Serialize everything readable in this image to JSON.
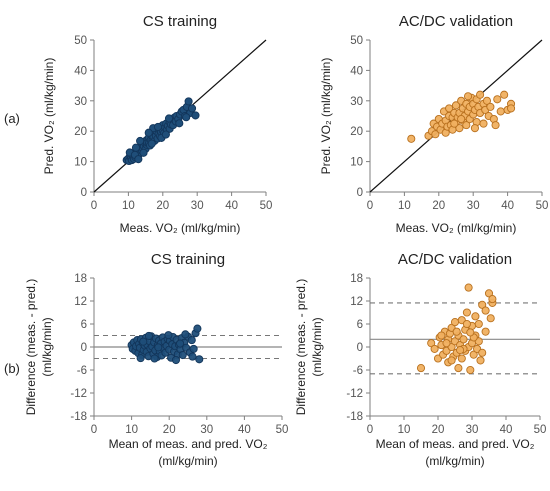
{
  "figure": {
    "row_labels": [
      "(a)",
      "(b)"
    ]
  },
  "chart_data": [
    {
      "id": "a-cs",
      "type": "scatter",
      "title": "CS training",
      "xlabel": "Meas. VO₂ (ml/kg/min)",
      "ylabel": "Pred. VO₂ (ml/kg/min)",
      "xlim": [
        0,
        50
      ],
      "ylim": [
        0,
        50
      ],
      "xticks": [
        0,
        10,
        20,
        30,
        40,
        50
      ],
      "yticks": [
        0,
        10,
        20,
        30,
        40,
        50
      ],
      "identity_line": true,
      "marker_color": "#1f4e79",
      "marker_edge": "#12355a",
      "points": [
        [
          9.5,
          10.5
        ],
        [
          10,
          11
        ],
        [
          10.2,
          10.2
        ],
        [
          10.5,
          12
        ],
        [
          10.8,
          11.2
        ],
        [
          11,
          10.5
        ],
        [
          11,
          12.5
        ],
        [
          11.3,
          11.7
        ],
        [
          11.6,
          10.9
        ],
        [
          11.8,
          13
        ],
        [
          12,
          11.5
        ],
        [
          12,
          12.8
        ],
        [
          12.3,
          12.1
        ],
        [
          12.5,
          13.5
        ],
        [
          12.7,
          11.8
        ],
        [
          13,
          12.4
        ],
        [
          13,
          14
        ],
        [
          13.2,
          13.2
        ],
        [
          13.5,
          12.8
        ],
        [
          13.6,
          14.6
        ],
        [
          13.8,
          15.2
        ],
        [
          14,
          13.5
        ],
        [
          14,
          16
        ],
        [
          14.2,
          14.3
        ],
        [
          14.5,
          15
        ],
        [
          14.7,
          16.5
        ],
        [
          15,
          14.2
        ],
        [
          15,
          15.8
        ],
        [
          15.2,
          17
        ],
        [
          15.4,
          15.5
        ],
        [
          15.5,
          16.2
        ],
        [
          15.8,
          17.6
        ],
        [
          16,
          16
        ],
        [
          16,
          18
        ],
        [
          16.3,
          15.3
        ],
        [
          16.5,
          17.2
        ],
        [
          16.7,
          18.6
        ],
        [
          17,
          17
        ],
        [
          17,
          19
        ],
        [
          17.3,
          18.1
        ],
        [
          17.6,
          16.8
        ],
        [
          17.8,
          19.5
        ],
        [
          18,
          18.5
        ],
        [
          18.2,
          20
        ],
        [
          18.5,
          17.6
        ],
        [
          18.8,
          19.2
        ],
        [
          19,
          20.5
        ],
        [
          19.2,
          18.4
        ],
        [
          19.5,
          19.8
        ],
        [
          19.8,
          21
        ],
        [
          20,
          20.2
        ],
        [
          20,
          22
        ],
        [
          20.4,
          19.4
        ],
        [
          20.7,
          21.2
        ],
        [
          21,
          22.5
        ],
        [
          21.2,
          20.5
        ],
        [
          21.5,
          21.8
        ],
        [
          22,
          23
        ],
        [
          22,
          20.8
        ],
        [
          22.4,
          22.2
        ],
        [
          22.8,
          23.8
        ],
        [
          23,
          22
        ],
        [
          23.4,
          24.5
        ],
        [
          23.8,
          23.2
        ],
        [
          24,
          25
        ],
        [
          24.5,
          24
        ],
        [
          25,
          25.5
        ],
        [
          25.5,
          26.5
        ],
        [
          26,
          27
        ],
        [
          26.5,
          25
        ],
        [
          27,
          28
        ],
        [
          27.5,
          29.8
        ],
        [
          28,
          26
        ],
        [
          28.5,
          27.5
        ],
        [
          10.4,
          13
        ],
        [
          11.9,
          12.2
        ],
        [
          12.9,
          10.8
        ],
        [
          14.4,
          12.9
        ],
        [
          16.8,
          15.9
        ],
        [
          19.6,
          17.8
        ],
        [
          21.8,
          24.2
        ],
        [
          17.2,
          21
        ],
        [
          15.9,
          19.5
        ],
        [
          13.4,
          16.8
        ],
        [
          24.8,
          22.6
        ],
        [
          26.8,
          24.6
        ],
        [
          12.2,
          14.6
        ],
        [
          18.6,
          21.4
        ],
        [
          20.9,
          18.9
        ],
        [
          29.5,
          25.2
        ]
      ]
    },
    {
      "id": "a-acdc",
      "type": "scatter",
      "title": "AC/DC validation",
      "xlabel": "Meas. VO₂ (ml/kg/min)",
      "ylabel": "Pred. VO₂ (ml/kg/min)",
      "xlim": [
        0,
        50
      ],
      "ylim": [
        0,
        50
      ],
      "xticks": [
        0,
        10,
        20,
        30,
        40,
        50
      ],
      "yticks": [
        0,
        10,
        20,
        30,
        40,
        50
      ],
      "identity_line": true,
      "marker_color": "#f0b060",
      "marker_edge": "#b8701e",
      "points": [
        [
          12,
          17.5
        ],
        [
          17,
          18.5
        ],
        [
          18,
          20
        ],
        [
          18.5,
          22.5
        ],
        [
          19,
          19
        ],
        [
          19.5,
          21.5
        ],
        [
          20,
          24
        ],
        [
          20.5,
          20.5
        ],
        [
          21,
          22.5
        ],
        [
          21.5,
          26.5
        ],
        [
          22,
          19.5
        ],
        [
          22,
          23.5
        ],
        [
          22.5,
          21.5
        ],
        [
          23,
          25
        ],
        [
          23,
          27.5
        ],
        [
          23.5,
          22
        ],
        [
          24,
          24.5
        ],
        [
          24,
          20.5
        ],
        [
          24.5,
          26
        ],
        [
          25,
          23
        ],
        [
          25,
          28.5
        ],
        [
          25.5,
          24.5
        ],
        [
          26,
          21
        ],
        [
          26,
          26
        ],
        [
          26.5,
          30
        ],
        [
          27,
          23.5
        ],
        [
          27,
          27.5
        ],
        [
          27.5,
          25
        ],
        [
          28,
          22
        ],
        [
          28,
          29
        ],
        [
          28.5,
          26.5
        ],
        [
          29,
          24
        ],
        [
          29,
          28
        ],
        [
          29.5,
          31
        ],
        [
          30,
          25.5
        ],
        [
          30,
          29
        ],
        [
          30.5,
          27
        ],
        [
          31,
          30.5
        ],
        [
          31,
          23
        ],
        [
          31.5,
          28
        ],
        [
          32,
          26
        ],
        [
          32,
          32
        ],
        [
          33,
          29
        ],
        [
          33.5,
          27
        ],
        [
          34,
          30
        ],
        [
          34.5,
          25
        ],
        [
          35,
          28
        ],
        [
          36,
          24
        ],
        [
          36.5,
          22
        ],
        [
          37,
          30.5
        ],
        [
          38,
          26.5
        ],
        [
          39,
          32
        ],
        [
          40,
          27
        ],
        [
          41,
          29
        ],
        [
          41,
          27.5
        ],
        [
          26.5,
          24
        ],
        [
          24.5,
          22.5
        ],
        [
          28.5,
          31.5
        ],
        [
          30.5,
          21
        ],
        [
          33,
          22.5
        ]
      ]
    },
    {
      "id": "b-cs",
      "type": "scatter",
      "title": "CS training",
      "xlabel": "Mean of meas. and pred. VO₂ (ml/kg/min)",
      "xlabel_lines": [
        "Mean of meas. and pred. VO₂",
        "(ml/kg/min)"
      ],
      "ylabel": "Difference (meas. - pred.) (ml/kg/min)",
      "ylabel_lines": [
        "Difference (meas. - pred.)",
        "(ml/kg/min)"
      ],
      "xlim": [
        0,
        50
      ],
      "ylim": [
        -18,
        18
      ],
      "xticks": [
        0,
        10,
        20,
        30,
        40,
        50
      ],
      "yticks": [
        -18,
        -12,
        -6,
        0,
        6,
        12,
        18
      ],
      "mean_line": 0,
      "loa": [
        3,
        -3
      ],
      "marker_color": "#1f4e79",
      "marker_edge": "#12355a",
      "points": [
        [
          10,
          0.5
        ],
        [
          10.3,
          -0.5
        ],
        [
          10.6,
          1.2
        ],
        [
          11,
          -1
        ],
        [
          11.2,
          0.2
        ],
        [
          11.5,
          1.8
        ],
        [
          11.8,
          -1.6
        ],
        [
          12,
          0.8
        ],
        [
          12.2,
          -0.2
        ],
        [
          12.5,
          2
        ],
        [
          12.8,
          -2
        ],
        [
          13,
          1
        ],
        [
          13.2,
          -0.8
        ],
        [
          13.5,
          0.4
        ],
        [
          13.8,
          2.4
        ],
        [
          14,
          -1.3
        ],
        [
          14.2,
          0.6
        ],
        [
          14.5,
          -2.4
        ],
        [
          14.8,
          1.5
        ],
        [
          15,
          -0.4
        ],
        [
          15.2,
          2.8
        ],
        [
          15.5,
          0.1
        ],
        [
          15.8,
          -1.8
        ],
        [
          16,
          1.2
        ],
        [
          16.3,
          -0.9
        ],
        [
          16.5,
          2.2
        ],
        [
          16.8,
          -2.6
        ],
        [
          17,
          0.5
        ],
        [
          17.3,
          1.7
        ],
        [
          17.5,
          -1.1
        ],
        [
          17.8,
          0.9
        ],
        [
          18,
          -2.2
        ],
        [
          18.3,
          2.5
        ],
        [
          18.5,
          -0.3
        ],
        [
          18.8,
          1.4
        ],
        [
          19,
          -1.5
        ],
        [
          19.3,
          0.3
        ],
        [
          19.6,
          2.1
        ],
        [
          20,
          -0.7
        ],
        [
          20.2,
          1.6
        ],
        [
          20.5,
          -2.8
        ],
        [
          20.8,
          0.7
        ],
        [
          21,
          2.6
        ],
        [
          21.3,
          -1.2
        ],
        [
          21.6,
          0.2
        ],
        [
          22,
          1.9
        ],
        [
          22.3,
          -1.9
        ],
        [
          22.6,
          0.6
        ],
        [
          23,
          -0.6
        ],
        [
          23.3,
          2.3
        ],
        [
          23.6,
          -2.1
        ],
        [
          24,
          1.1
        ],
        [
          24.5,
          -0.2
        ],
        [
          25,
          2.7
        ],
        [
          25.5,
          -1.4
        ],
        [
          26,
          1.8
        ],
        [
          26.5,
          -0.5
        ],
        [
          27,
          3.6
        ],
        [
          27.5,
          4.8
        ],
        [
          28,
          -3.2
        ],
        [
          12.4,
          -2.9
        ],
        [
          14.6,
          2.9
        ],
        [
          16.1,
          -3
        ],
        [
          19.8,
          3.1
        ],
        [
          21.8,
          -3.4
        ],
        [
          24.3,
          3.3
        ],
        [
          13.1,
          1.4
        ],
        [
          17.1,
          -0.1
        ],
        [
          22.9,
          0.9
        ],
        [
          26.2,
          -2.5
        ]
      ]
    },
    {
      "id": "b-acdc",
      "type": "scatter",
      "title": "AC/DC validation",
      "xlabel": "Mean of meas. and pred. VO₂ (ml/kg/min)",
      "xlabel_lines": [
        "Mean of meas. and pred. VO₂",
        "(ml/kg/min)"
      ],
      "ylabel": "Difference (meas. - pred.) (ml/kg/min)",
      "ylabel_lines": [
        "Difference (meas. - pred.)",
        "(ml/kg/min)"
      ],
      "xlim": [
        0,
        50
      ],
      "ylim": [
        -18,
        18
      ],
      "xticks": [
        0,
        10,
        20,
        30,
        40,
        50
      ],
      "yticks": [
        -18,
        -12,
        -6,
        0,
        6,
        12,
        18
      ],
      "mean_line": 2,
      "loa": [
        11.5,
        -7
      ],
      "marker_color": "#f0b060",
      "marker_edge": "#b8701e",
      "points": [
        [
          15,
          -5.5
        ],
        [
          18,
          1
        ],
        [
          19,
          -0.5
        ],
        [
          20,
          -3
        ],
        [
          20.5,
          2.5
        ],
        [
          21,
          0.5
        ],
        [
          21.5,
          -2
        ],
        [
          22,
          4
        ],
        [
          22.5,
          -1
        ],
        [
          23,
          2
        ],
        [
          23,
          -4
        ],
        [
          23.5,
          3.5
        ],
        [
          24,
          0
        ],
        [
          24,
          5
        ],
        [
          24.5,
          -2.5
        ],
        [
          25,
          1.5
        ],
        [
          25,
          6.5
        ],
        [
          25.5,
          -1.5
        ],
        [
          26,
          3
        ],
        [
          26,
          -5.5
        ],
        [
          26.5,
          0.5
        ],
        [
          27,
          7
        ],
        [
          27,
          -3
        ],
        [
          27.5,
          2
        ],
        [
          28,
          4.5
        ],
        [
          28,
          -1
        ],
        [
          28.5,
          9
        ],
        [
          29,
          15.5
        ],
        [
          29,
          0
        ],
        [
          29.5,
          -6
        ],
        [
          30,
          5.5
        ],
        [
          30,
          1
        ],
        [
          30.5,
          -2
        ],
        [
          31,
          8
        ],
        [
          31,
          3
        ],
        [
          31.5,
          -0.5
        ],
        [
          32,
          6
        ],
        [
          32,
          1.5
        ],
        [
          33,
          11
        ],
        [
          33,
          -1.5
        ],
        [
          34,
          9.5
        ],
        [
          34,
          4
        ],
        [
          35,
          14
        ],
        [
          35.5,
          7.5
        ],
        [
          36,
          11.5
        ],
        [
          22.5,
          1
        ],
        [
          25.5,
          4
        ],
        [
          27.5,
          -0.5
        ],
        [
          30.5,
          2.5
        ],
        [
          32.5,
          -3.5
        ],
        [
          24,
          -3.5
        ],
        [
          28.5,
          6
        ],
        [
          21,
          3
        ],
        [
          26.5,
          -0.8
        ],
        [
          29.5,
          3.8
        ],
        [
          36,
          12.5
        ]
      ]
    }
  ]
}
